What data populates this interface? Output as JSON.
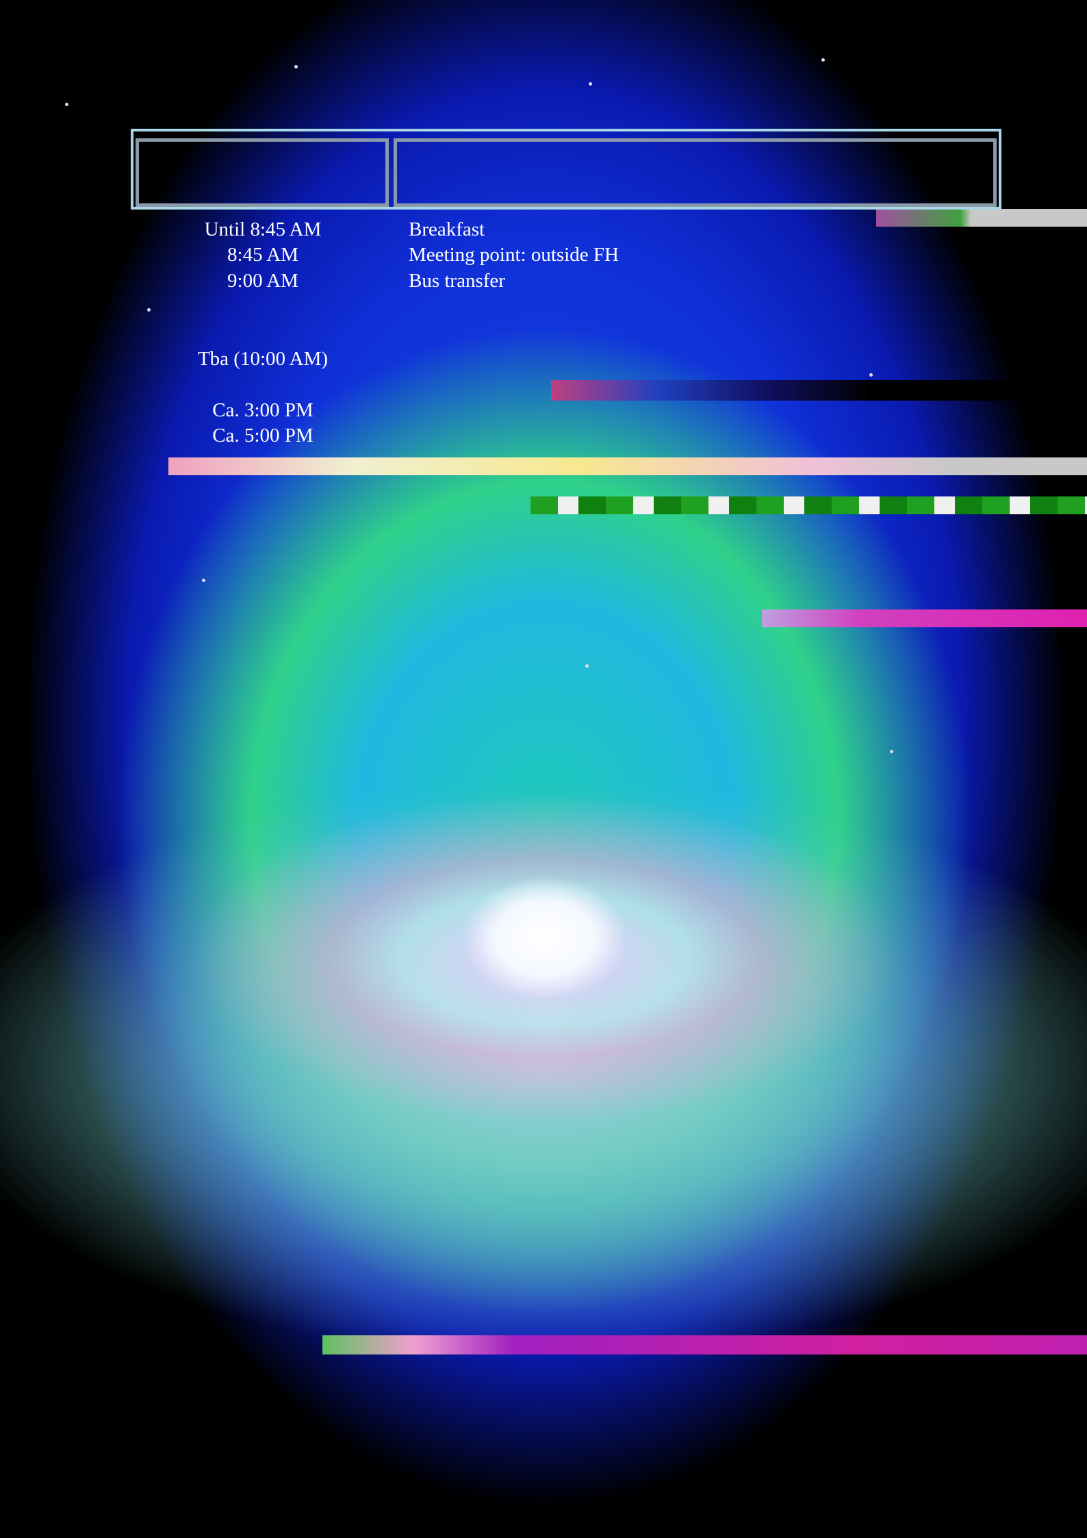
{
  "schedule": {
    "rows": [
      {
        "time": "Until 8:45 AM",
        "event": "Breakfast"
      },
      {
        "time": "8:45 AM",
        "event": "Meeting point: outside FH"
      },
      {
        "time": "9:00 AM",
        "event": "Bus transfer"
      },
      {
        "time": "Tba (10:00 AM)"
      },
      {
        "time": "Ca. 3:00 PM"
      },
      {
        "time": "Ca. 5:00 PM"
      }
    ]
  }
}
